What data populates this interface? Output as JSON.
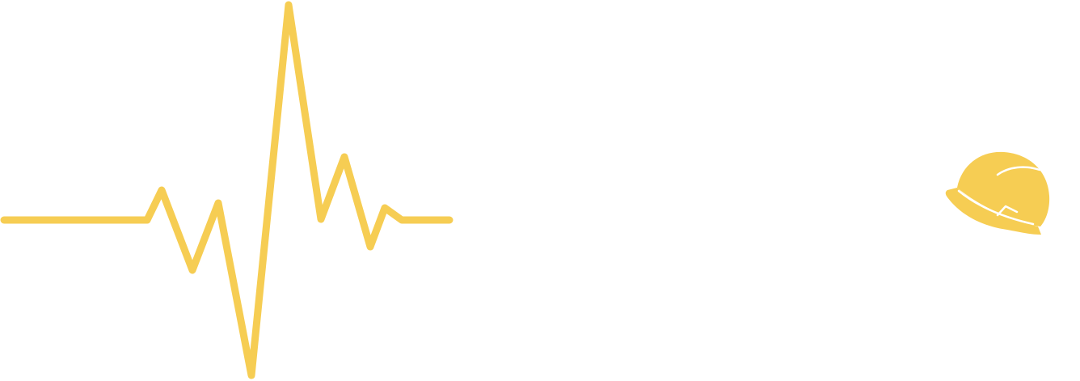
{
  "graphic": {
    "accent_color": "#F6CD53",
    "background_color": "#FFFFFF",
    "icons": [
      "heartbeat-line-icon",
      "hard-hat-icon"
    ]
  }
}
